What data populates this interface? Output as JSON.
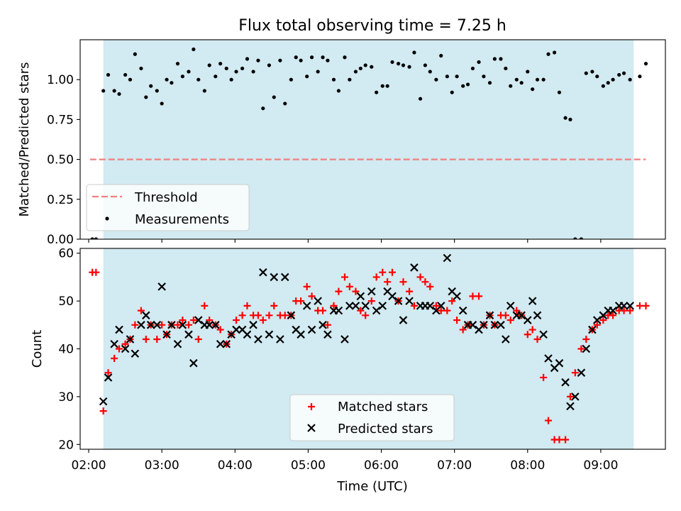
{
  "figure": {
    "title": "Flux total observing time = 7.25 h",
    "xlabel": "Time (UTC)"
  },
  "chart_data": [
    {
      "type": "scatter",
      "panel": "top",
      "ylabel": "Matched/Predicted stars",
      "xlim": [
        "01:53",
        "09:53"
      ],
      "ylim": [
        0.0,
        1.25
      ],
      "yticks": [
        "0.00",
        "0.25",
        "0.50",
        "0.75",
        "1.00"
      ],
      "xticks": [
        "02:00",
        "03:00",
        "04:00",
        "05:00",
        "06:00",
        "07:00",
        "08:00",
        "09:00"
      ],
      "shaded_interval": [
        "02:12",
        "09:27"
      ],
      "shade_color": "#add8e6",
      "threshold": {
        "name": "Threshold",
        "value": 0.5,
        "x_range": [
          "02:01",
          "09:37"
        ],
        "color": "#f08080",
        "style": "dashed"
      },
      "legend": {
        "placement": "lower-left",
        "entries": [
          "Threshold",
          "Measurements"
        ]
      },
      "series": [
        {
          "name": "Measurements",
          "color": "#000000",
          "x": [
            "02:03",
            "02:06",
            "02:12",
            "02:16",
            "02:21",
            "02:25",
            "02:30",
            "02:34",
            "02:38",
            "02:43",
            "02:47",
            "02:51",
            "02:56",
            "03:00",
            "03:04",
            "03:08",
            "03:13",
            "03:17",
            "03:22",
            "03:26",
            "03:30",
            "03:35",
            "03:39",
            "03:44",
            "03:48",
            "03:53",
            "03:57",
            "04:01",
            "04:06",
            "04:10",
            "04:15",
            "04:19",
            "04:23",
            "04:28",
            "04:32",
            "04:37",
            "04:41",
            "04:46",
            "04:50",
            "04:54",
            "04:59",
            "05:03",
            "05:08",
            "05:12",
            "05:16",
            "05:21",
            "05:25",
            "05:30",
            "05:34",
            "05:39",
            "05:43",
            "05:47",
            "05:52",
            "05:56",
            "06:01",
            "06:05",
            "06:09",
            "06:14",
            "06:18",
            "06:23",
            "06:27",
            "06:32",
            "06:36",
            "06:40",
            "06:45",
            "06:49",
            "06:54",
            "06:58",
            "07:02",
            "07:07",
            "07:11",
            "07:15",
            "07:20",
            "07:24",
            "07:29",
            "07:33",
            "07:38",
            "07:42",
            "07:46",
            "07:51",
            "07:55",
            "08:00",
            "08:04",
            "08:08",
            "08:13",
            "08:17",
            "08:22",
            "08:26",
            "08:31",
            "08:35",
            "08:39",
            "08:44",
            "08:48",
            "08:53",
            "08:57",
            "09:02",
            "09:06",
            "09:10",
            "09:15",
            "09:19",
            "09:24",
            "09:32",
            "09:37"
          ],
          "y": [
            0.0,
            0.0,
            0.93,
            1.03,
            0.93,
            0.91,
            1.03,
            1.0,
            1.16,
            1.07,
            0.89,
            0.96,
            0.93,
            0.85,
            1.0,
            0.98,
            1.1,
            1.02,
            1.05,
            1.19,
            1.0,
            0.93,
            1.09,
            1.02,
            1.1,
            1.07,
            1.0,
            1.05,
            1.07,
            1.13,
            1.05,
            1.12,
            0.82,
            1.09,
            0.89,
            1.12,
            0.85,
            1.0,
            1.14,
            1.12,
            1.02,
            1.14,
            1.05,
            1.14,
            1.12,
            1.0,
            0.93,
            1.14,
            1.0,
            1.05,
            1.07,
            1.09,
            1.08,
            0.92,
            0.96,
            0.96,
            1.11,
            1.1,
            1.09,
            1.08,
            1.17,
            0.88,
            1.09,
            1.05,
            1.0,
            1.15,
            1.02,
            0.92,
            1.02,
            0.96,
            0.97,
            1.07,
            1.11,
            1.02,
            0.98,
            1.13,
            1.13,
            1.07,
            0.96,
            1.0,
            0.98,
            1.05,
            0.94,
            1.0,
            1.0,
            1.16,
            1.17,
            0.92,
            0.76,
            0.75,
            0.0,
            0.0,
            1.04,
            1.05,
            1.02,
            0.96,
            0.98,
            1.0,
            1.03,
            1.04,
            1.0,
            1.02,
            1.1
          ]
        }
      ]
    },
    {
      "type": "scatter",
      "panel": "bottom",
      "ylabel": "Count",
      "xlabel": "Time (UTC)",
      "xlim": [
        "01:53",
        "09:53"
      ],
      "ylim": [
        19,
        61
      ],
      "yticks": [
        "20",
        "30",
        "40",
        "50",
        "60"
      ],
      "xticks": [
        "02:00",
        "03:00",
        "04:00",
        "05:00",
        "06:00",
        "07:00",
        "08:00",
        "09:00"
      ],
      "shaded_interval": [
        "02:12",
        "09:27"
      ],
      "shade_color": "#add8e6",
      "legend": {
        "placement": "lower-center",
        "entries": [
          "Matched stars",
          "Predicted stars"
        ]
      },
      "series": [
        {
          "name": "Matched stars",
          "marker": "plus",
          "color": "#ff0000",
          "x": [
            "02:03",
            "02:06",
            "02:12",
            "02:16",
            "02:21",
            "02:25",
            "02:30",
            "02:34",
            "02:38",
            "02:43",
            "02:47",
            "02:51",
            "02:56",
            "03:00",
            "03:04",
            "03:08",
            "03:13",
            "03:17",
            "03:22",
            "03:26",
            "03:30",
            "03:35",
            "03:39",
            "03:44",
            "03:48",
            "03:53",
            "03:57",
            "04:01",
            "04:06",
            "04:10",
            "04:15",
            "04:19",
            "04:23",
            "04:28",
            "04:32",
            "04:37",
            "04:41",
            "04:46",
            "04:50",
            "04:54",
            "04:59",
            "05:03",
            "05:08",
            "05:12",
            "05:16",
            "05:21",
            "05:25",
            "05:30",
            "05:34",
            "05:39",
            "05:43",
            "05:47",
            "05:52",
            "05:56",
            "06:01",
            "06:05",
            "06:09",
            "06:14",
            "06:18",
            "06:23",
            "06:27",
            "06:32",
            "06:36",
            "06:40",
            "06:45",
            "06:49",
            "06:54",
            "06:58",
            "07:02",
            "07:07",
            "07:11",
            "07:15",
            "07:20",
            "07:24",
            "07:29",
            "07:33",
            "07:38",
            "07:42",
            "07:46",
            "07:51",
            "07:55",
            "08:00",
            "08:04",
            "08:08",
            "08:13",
            "08:17",
            "08:22",
            "08:26",
            "08:31",
            "08:35",
            "08:39",
            "08:44",
            "08:48",
            "08:53",
            "08:57",
            "09:02",
            "09:06",
            "09:10",
            "09:15",
            "09:19",
            "09:24",
            "09:32",
            "09:37"
          ],
          "y": [
            56,
            56,
            27,
            35,
            38,
            40,
            41,
            42,
            45,
            48,
            42,
            45,
            42,
            45,
            43,
            45,
            45,
            46,
            45,
            46,
            42,
            49,
            46,
            45,
            44,
            41,
            43,
            46,
            47,
            49,
            47,
            47,
            46,
            47,
            49,
            47,
            47,
            47,
            50,
            50,
            53,
            51,
            48,
            48,
            45,
            49,
            52,
            55,
            53,
            52,
            48,
            47,
            50,
            55,
            56,
            54,
            56,
            50,
            54,
            52,
            49,
            55,
            54,
            53,
            49,
            48,
            48,
            50,
            46,
            44,
            45,
            51,
            51,
            45,
            47,
            45,
            47,
            47,
            46,
            48,
            47,
            43,
            44,
            42,
            34,
            25,
            21,
            21,
            21,
            30,
            35,
            40,
            42,
            44,
            45,
            46,
            47,
            47,
            48,
            48,
            48,
            49,
            49
          ]
        },
        {
          "name": "Predicted stars",
          "marker": "x",
          "color": "#000000",
          "x": [
            "02:12",
            "02:16",
            "02:21",
            "02:25",
            "02:30",
            "02:34",
            "02:38",
            "02:43",
            "02:47",
            "02:51",
            "02:56",
            "03:00",
            "03:04",
            "03:08",
            "03:13",
            "03:17",
            "03:22",
            "03:26",
            "03:30",
            "03:35",
            "03:39",
            "03:44",
            "03:48",
            "03:53",
            "03:57",
            "04:01",
            "04:06",
            "04:10",
            "04:15",
            "04:19",
            "04:23",
            "04:28",
            "04:32",
            "04:37",
            "04:41",
            "04:46",
            "04:50",
            "04:54",
            "04:59",
            "05:03",
            "05:08",
            "05:12",
            "05:16",
            "05:21",
            "05:25",
            "05:30",
            "05:34",
            "05:39",
            "05:43",
            "05:47",
            "05:52",
            "05:56",
            "06:01",
            "06:05",
            "06:09",
            "06:14",
            "06:18",
            "06:23",
            "06:27",
            "06:32",
            "06:36",
            "06:40",
            "06:45",
            "06:49",
            "06:54",
            "06:58",
            "07:02",
            "07:07",
            "07:11",
            "07:15",
            "07:20",
            "07:24",
            "07:29",
            "07:33",
            "07:38",
            "07:42",
            "07:46",
            "07:51",
            "07:55",
            "08:00",
            "08:04",
            "08:08",
            "08:13",
            "08:17",
            "08:22",
            "08:26",
            "08:31",
            "08:35",
            "08:39",
            "08:44",
            "08:48",
            "08:53",
            "08:57",
            "09:02",
            "09:06",
            "09:10",
            "09:15",
            "09:19",
            "09:24"
          ],
          "y": [
            29,
            34,
            41,
            44,
            40,
            42,
            39,
            45,
            47,
            45,
            45,
            53,
            43,
            45,
            41,
            45,
            43,
            37,
            46,
            45,
            45,
            45,
            41,
            41,
            43,
            44,
            44,
            43,
            45,
            42,
            56,
            43,
            55,
            42,
            55,
            47,
            44,
            43,
            49,
            44,
            50,
            45,
            43,
            48,
            48,
            42,
            49,
            49,
            51,
            49,
            52,
            48,
            49,
            52,
            51,
            50,
            46,
            50,
            57,
            49,
            49,
            49,
            48,
            49,
            59,
            52,
            51,
            48,
            45,
            45,
            44,
            45,
            47,
            45,
            45,
            42,
            49,
            47,
            47,
            46,
            50,
            47,
            43,
            38,
            36,
            37,
            33,
            28,
            30,
            35,
            40,
            44,
            46,
            47,
            48,
            48,
            49,
            49,
            49
          ]
        }
      ]
    }
  ]
}
